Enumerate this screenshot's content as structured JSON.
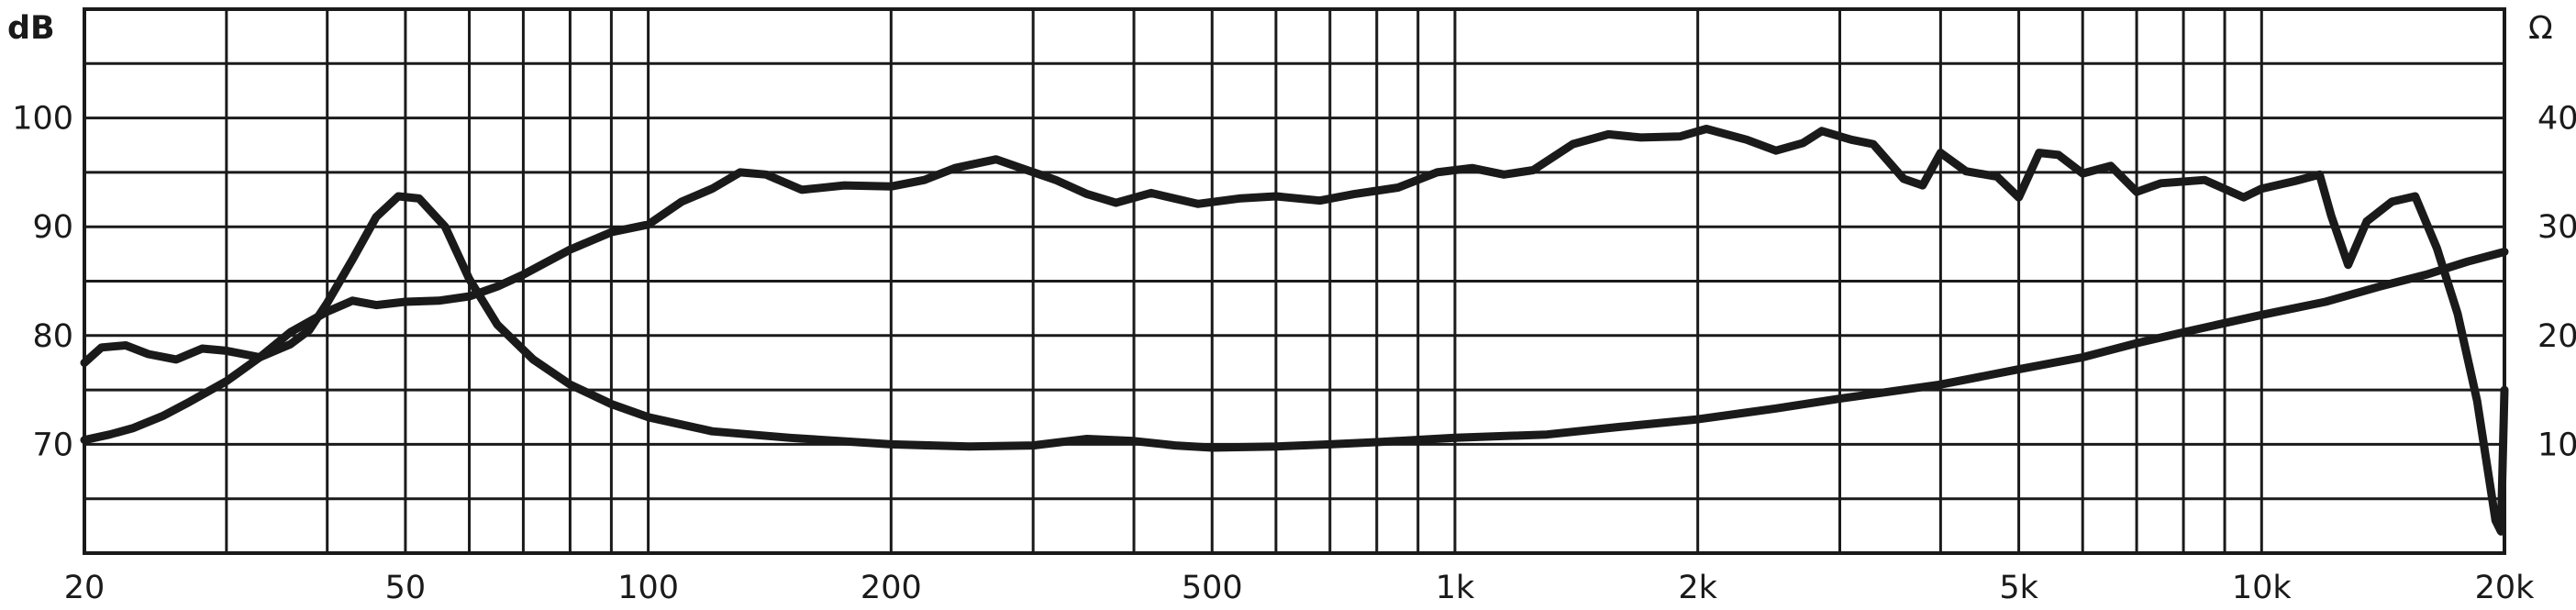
{
  "chart_data": {
    "type": "line",
    "x_scale": "log",
    "xlim": [
      20,
      20000
    ],
    "ylim_left": [
      60,
      110
    ],
    "ylim_right": [
      0,
      50
    ],
    "ylabel": "dB",
    "y2label": "Ω",
    "grid": true,
    "legend": "none",
    "colors": {
      "grid": "#1a1a1a",
      "curve": "#1a1a1a",
      "background": "#ffffff"
    },
    "x_ticks": [
      {
        "value": 20,
        "label": "20"
      },
      {
        "value": 50,
        "label": "50"
      },
      {
        "value": 100,
        "label": "100"
      },
      {
        "value": 200,
        "label": "200"
      },
      {
        "value": 500,
        "label": "500"
      },
      {
        "value": 1000,
        "label": "1k"
      },
      {
        "value": 2000,
        "label": "2k"
      },
      {
        "value": 5000,
        "label": "5k"
      },
      {
        "value": 10000,
        "label": "10k"
      },
      {
        "value": 20000,
        "label": "20k"
      }
    ],
    "y_ticks_left": [
      {
        "value": 70,
        "label": "70"
      },
      {
        "value": 80,
        "label": "80"
      },
      {
        "value": 90,
        "label": "90"
      },
      {
        "value": 100,
        "label": "100"
      }
    ],
    "y_ticks_right": [
      {
        "value": 10,
        "label": "10"
      },
      {
        "value": 20,
        "label": "20"
      },
      {
        "value": 30,
        "label": "30"
      },
      {
        "value": 40,
        "label": "40"
      }
    ],
    "series": [
      {
        "axis": "left",
        "points": [
          [
            20,
            70.4
          ],
          [
            21.5,
            70.9
          ],
          [
            23,
            71.5
          ],
          [
            25,
            72.6
          ],
          [
            27,
            73.9
          ],
          [
            30,
            75.8
          ],
          [
            33,
            78.0
          ],
          [
            36,
            80.3
          ],
          [
            40,
            82.2
          ],
          [
            43,
            83.2
          ],
          [
            46,
            82.8
          ],
          [
            50,
            83.1
          ],
          [
            55,
            83.2
          ],
          [
            60,
            83.6
          ],
          [
            65,
            84.5
          ],
          [
            70,
            85.6
          ],
          [
            80,
            87.9
          ],
          [
            90,
            89.5
          ],
          [
            100,
            90.2
          ],
          [
            110,
            92.3
          ],
          [
            120,
            93.5
          ],
          [
            130,
            95.0
          ],
          [
            140,
            94.8
          ],
          [
            155,
            93.4
          ],
          [
            175,
            93.8
          ],
          [
            200,
            93.7
          ],
          [
            220,
            94.3
          ],
          [
            240,
            95.4
          ],
          [
            270,
            96.2
          ],
          [
            290,
            95.4
          ],
          [
            320,
            94.3
          ],
          [
            350,
            93.0
          ],
          [
            380,
            92.2
          ],
          [
            420,
            93.1
          ],
          [
            480,
            92.1
          ],
          [
            540,
            92.6
          ],
          [
            600,
            92.8
          ],
          [
            680,
            92.4
          ],
          [
            750,
            93.0
          ],
          [
            850,
            93.6
          ],
          [
            950,
            95.0
          ],
          [
            1050,
            95.4
          ],
          [
            1150,
            94.8
          ],
          [
            1250,
            95.2
          ],
          [
            1400,
            97.6
          ],
          [
            1550,
            98.5
          ],
          [
            1700,
            98.2
          ],
          [
            1900,
            98.3
          ],
          [
            2050,
            99.0
          ],
          [
            2300,
            98.0
          ],
          [
            2500,
            97.0
          ],
          [
            2700,
            97.7
          ],
          [
            2850,
            98.8
          ],
          [
            3100,
            98.0
          ],
          [
            3300,
            97.6
          ],
          [
            3600,
            94.4
          ],
          [
            3800,
            93.8
          ],
          [
            4000,
            96.8
          ],
          [
            4300,
            95.1
          ],
          [
            4700,
            94.6
          ],
          [
            5000,
            92.7
          ],
          [
            5300,
            96.8
          ],
          [
            5600,
            96.6
          ],
          [
            6000,
            94.9
          ],
          [
            6500,
            95.6
          ],
          [
            7000,
            93.2
          ],
          [
            7500,
            94.0
          ],
          [
            8500,
            94.3
          ],
          [
            9500,
            92.7
          ],
          [
            10000,
            93.5
          ],
          [
            11000,
            94.2
          ],
          [
            11800,
            94.8
          ],
          [
            12200,
            91.0
          ],
          [
            12800,
            86.5
          ],
          [
            13500,
            90.5
          ],
          [
            14500,
            92.3
          ],
          [
            15500,
            92.8
          ],
          [
            16500,
            88.0
          ],
          [
            17500,
            82.0
          ],
          [
            18500,
            74.0
          ],
          [
            19500,
            63.0
          ],
          [
            19800,
            62.0
          ],
          [
            20000,
            75.0
          ]
        ]
      },
      {
        "axis": "right",
        "points": [
          [
            20,
            17.5
          ],
          [
            21,
            18.9
          ],
          [
            22.5,
            19.1
          ],
          [
            24,
            18.3
          ],
          [
            26,
            17.8
          ],
          [
            28,
            18.8
          ],
          [
            30,
            18.6
          ],
          [
            33,
            18.0
          ],
          [
            36,
            19.2
          ],
          [
            38,
            20.5
          ],
          [
            40,
            23.0
          ],
          [
            43,
            27.0
          ],
          [
            46,
            30.9
          ],
          [
            49,
            32.8
          ],
          [
            52,
            32.6
          ],
          [
            56,
            30.0
          ],
          [
            60,
            25.2
          ],
          [
            65,
            21.0
          ],
          [
            72,
            17.8
          ],
          [
            80,
            15.5
          ],
          [
            90,
            13.7
          ],
          [
            100,
            12.5
          ],
          [
            120,
            11.2
          ],
          [
            150,
            10.6
          ],
          [
            200,
            10.0
          ],
          [
            250,
            9.8
          ],
          [
            300,
            9.9
          ],
          [
            350,
            10.5
          ],
          [
            400,
            10.3
          ],
          [
            450,
            9.9
          ],
          [
            500,
            9.7
          ],
          [
            600,
            9.8
          ],
          [
            700,
            10.0
          ],
          [
            800,
            10.2
          ],
          [
            1000,
            10.6
          ],
          [
            1300,
            10.9
          ],
          [
            1600,
            11.6
          ],
          [
            2000,
            12.3
          ],
          [
            2500,
            13.3
          ],
          [
            3000,
            14.2
          ],
          [
            4000,
            15.5
          ],
          [
            5000,
            16.9
          ],
          [
            6000,
            18.0
          ],
          [
            7000,
            19.3
          ],
          [
            8000,
            20.3
          ],
          [
            10000,
            21.9
          ],
          [
            12000,
            23.1
          ],
          [
            14000,
            24.5
          ],
          [
            16000,
            25.6
          ],
          [
            18000,
            26.8
          ],
          [
            20000,
            27.7
          ]
        ]
      }
    ]
  },
  "labels": {
    "ylabel": "dB",
    "y2label": "Ω"
  }
}
